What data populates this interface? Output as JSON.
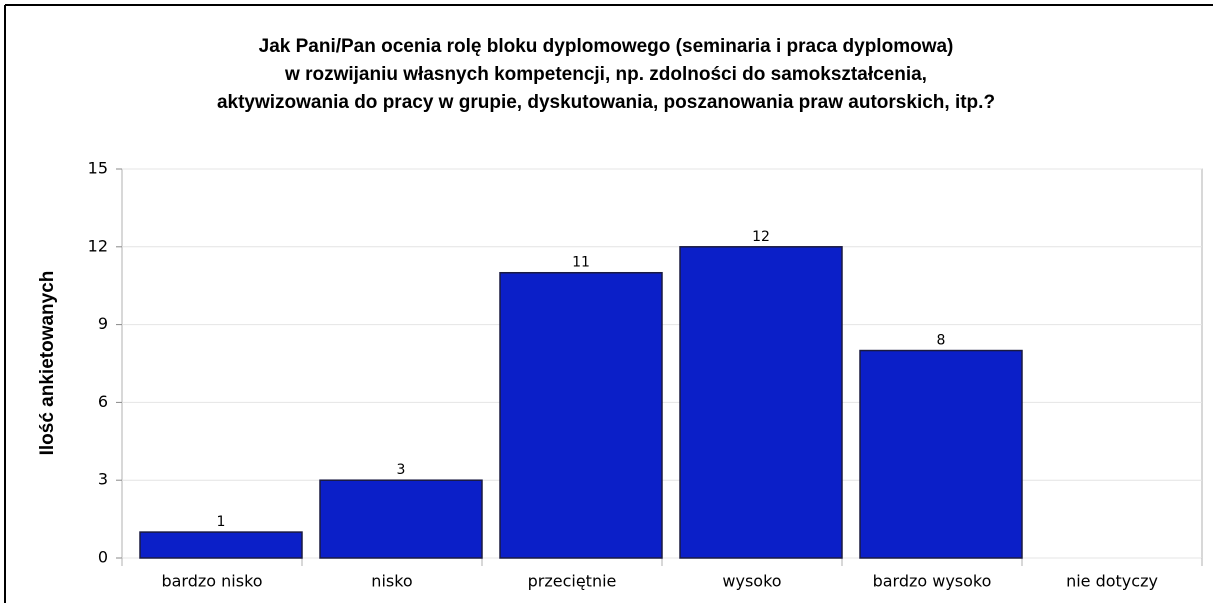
{
  "chart_data": {
    "type": "bar",
    "title": [
      "Jak Pani/Pan ocenia rolę bloku dyplomowego (seminaria i praca dyplomowa)",
      "w rozwijaniu własnych kompetencji, np. zdolności do samokształcenia,",
      "aktywizowania do pracy w grupie, dyskutowania, poszanowania praw autorskich, itp.?"
    ],
    "y_label": "Ilość ankietowanych",
    "categories": [
      "bardzo nisko",
      "nisko",
      "przeciętnie",
      "wysoko",
      "bardzo wysoko",
      "nie dotyczy"
    ],
    "values": [
      1,
      3,
      11,
      12,
      8,
      null
    ],
    "color": "#0b1fc8",
    "ylim": [
      0,
      15
    ],
    "yticks": [
      0,
      3,
      6,
      9,
      12,
      15
    ],
    "grid": true
  }
}
